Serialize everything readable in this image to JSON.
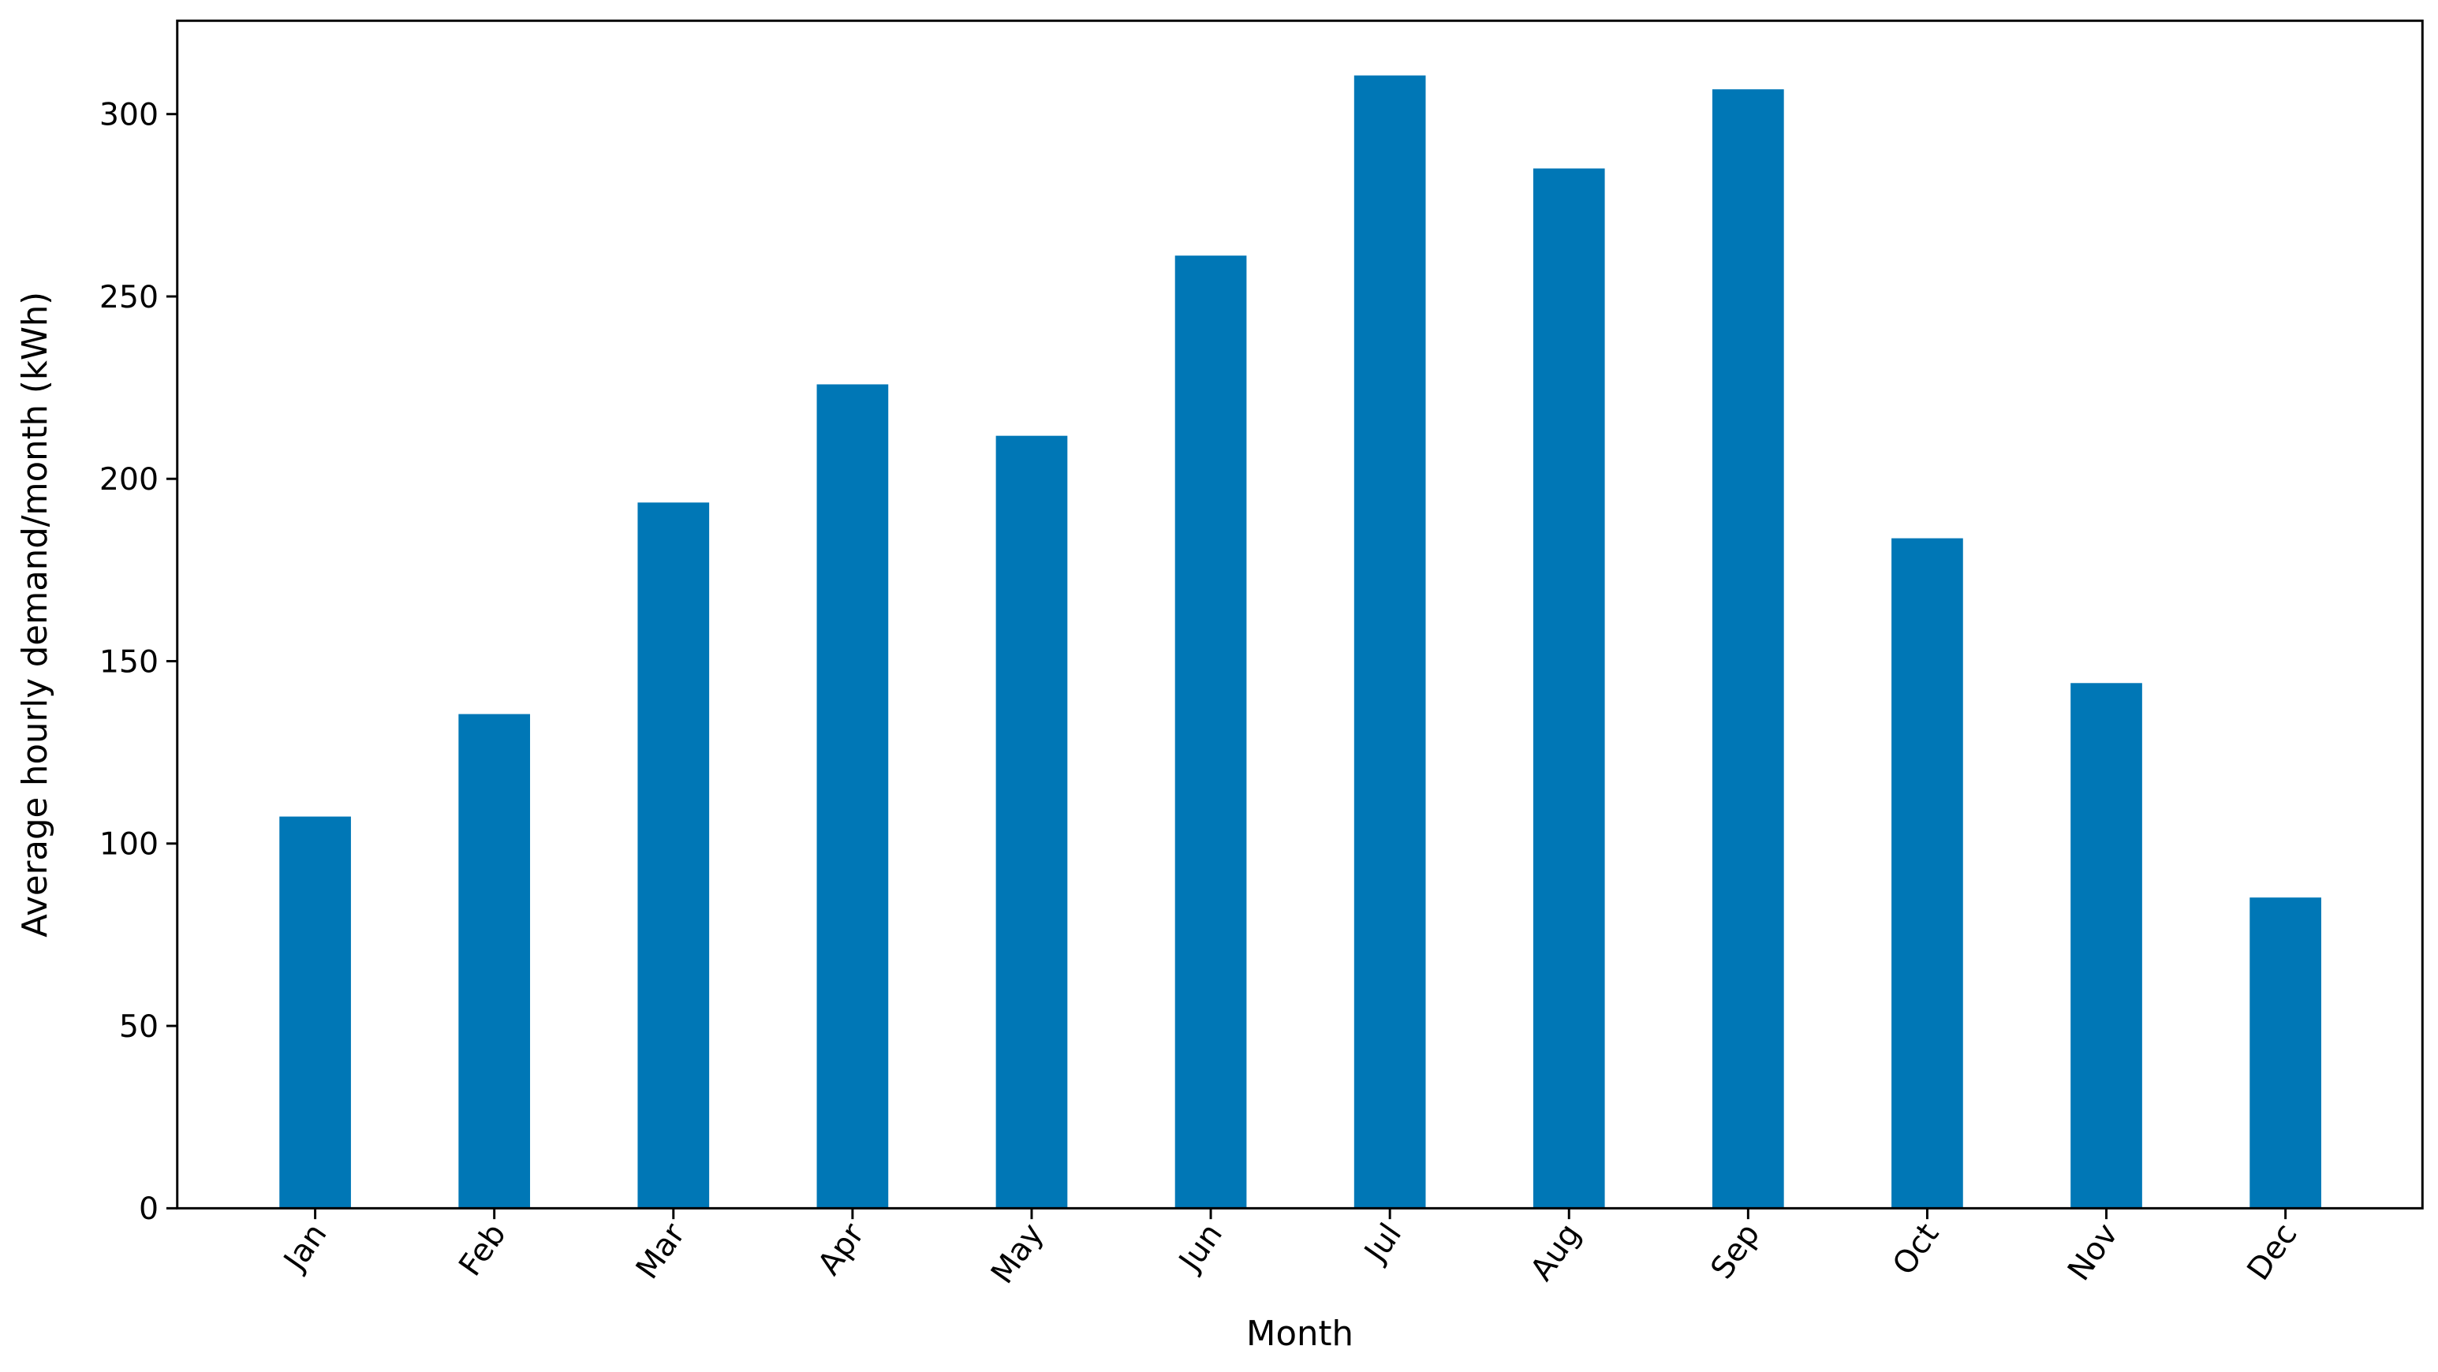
{
  "chart_data": {
    "type": "bar",
    "x_label": "Month",
    "y_label": "Average hourly demand/month (kWh)",
    "categories": [
      "Jan",
      "Feb",
      "Mar",
      "Apr",
      "May",
      "Jun",
      "Jul",
      "Aug",
      "Sep",
      "Oct",
      "Nov",
      "Dec"
    ],
    "values": [
      107.4,
      135.5,
      193.5,
      225.9,
      211.8,
      261.2,
      310.6,
      285.1,
      306.8,
      183.7,
      144.0,
      85.2
    ],
    "color": "#0077b6",
    "ylim": [
      0,
      325.6
    ],
    "yticks": [
      0,
      50,
      100,
      150,
      200,
      250,
      300
    ]
  }
}
